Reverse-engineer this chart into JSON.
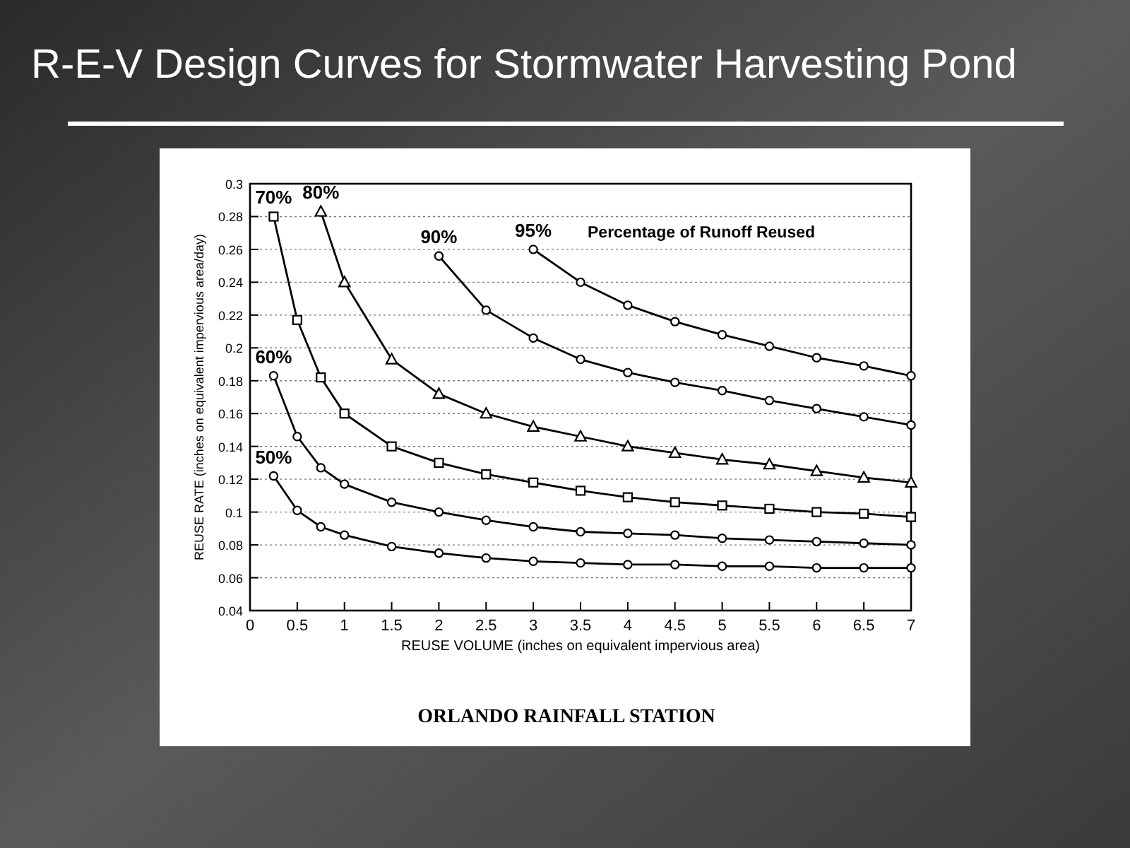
{
  "chart_data": {
    "type": "line",
    "title": "R-E-V Design Curves for Stormwater Harvesting Pond",
    "subtitle": "ORLANDO RAINFALL STATION",
    "xlabel": "REUSE VOLUME (inches on equivalent impervious area)",
    "ylabel": "REUSE RATE (inches on equivalent impervious area/day)",
    "legend_title": "Percentage of Runoff Reused",
    "xlim": [
      0,
      7
    ],
    "ylim": [
      0.04,
      0.3
    ],
    "xticks": [
      0,
      0.5,
      1,
      1.5,
      2,
      2.5,
      3,
      3.5,
      4,
      4.5,
      5,
      5.5,
      6,
      6.5,
      7
    ],
    "yticks": [
      0.04,
      0.06,
      0.08,
      0.1,
      0.12,
      0.14,
      0.16,
      0.18,
      0.2,
      0.22,
      0.24,
      0.26,
      0.28,
      0.3
    ],
    "grid": "y",
    "line_style": "solid",
    "series": [
      {
        "name": "50%",
        "color": "#000000",
        "marker": "circle",
        "x": [
          0.25,
          0.5,
          0.75,
          1,
          1.5,
          2,
          2.5,
          3,
          3.5,
          4,
          4.5,
          5,
          5.5,
          6,
          6.5,
          7
        ],
        "values": [
          0.122,
          0.101,
          0.091,
          0.086,
          0.079,
          0.075,
          0.072,
          0.07,
          0.069,
          0.068,
          0.068,
          0.067,
          0.067,
          0.066,
          0.066,
          0.066
        ]
      },
      {
        "name": "60%",
        "color": "#000000",
        "marker": "circle",
        "x": [
          0.25,
          0.5,
          0.75,
          1,
          1.5,
          2,
          2.5,
          3,
          3.5,
          4,
          4.5,
          5,
          5.5,
          6,
          6.5,
          7
        ],
        "values": [
          0.183,
          0.146,
          0.127,
          0.117,
          0.106,
          0.1,
          0.095,
          0.091,
          0.088,
          0.087,
          0.086,
          0.084,
          0.083,
          0.082,
          0.081,
          0.08
        ]
      },
      {
        "name": "70%",
        "color": "#000000",
        "marker": "square",
        "x": [
          0.25,
          0.5,
          0.75,
          1,
          1.5,
          2,
          2.5,
          3,
          3.5,
          4,
          4.5,
          5,
          5.5,
          6,
          6.5,
          7
        ],
        "values": [
          0.28,
          0.217,
          0.182,
          0.16,
          0.14,
          0.13,
          0.123,
          0.118,
          0.113,
          0.109,
          0.106,
          0.104,
          0.102,
          0.1,
          0.099,
          0.097
        ]
      },
      {
        "name": "80%",
        "color": "#000000",
        "marker": "triangle",
        "x": [
          0.75,
          1,
          1.5,
          2,
          2.5,
          3,
          3.5,
          4,
          4.5,
          5,
          5.5,
          6,
          6.5,
          7
        ],
        "values": [
          0.283,
          0.24,
          0.193,
          0.172,
          0.16,
          0.152,
          0.146,
          0.14,
          0.136,
          0.132,
          0.129,
          0.125,
          0.121,
          0.118
        ]
      },
      {
        "name": "90%",
        "color": "#000000",
        "marker": "circle",
        "x": [
          2,
          2.5,
          3,
          3.5,
          4,
          4.5,
          5,
          5.5,
          6,
          6.5,
          7
        ],
        "values": [
          0.256,
          0.223,
          0.206,
          0.193,
          0.185,
          0.179,
          0.174,
          0.168,
          0.163,
          0.158,
          0.153
        ]
      },
      {
        "name": "95%",
        "color": "#000000",
        "marker": "circle",
        "x": [
          3,
          3.5,
          4,
          4.5,
          5,
          5.5,
          6,
          6.5,
          7
        ],
        "values": [
          0.26,
          0.24,
          0.226,
          0.216,
          0.208,
          0.201,
          0.194,
          0.189,
          0.183
        ]
      }
    ]
  }
}
